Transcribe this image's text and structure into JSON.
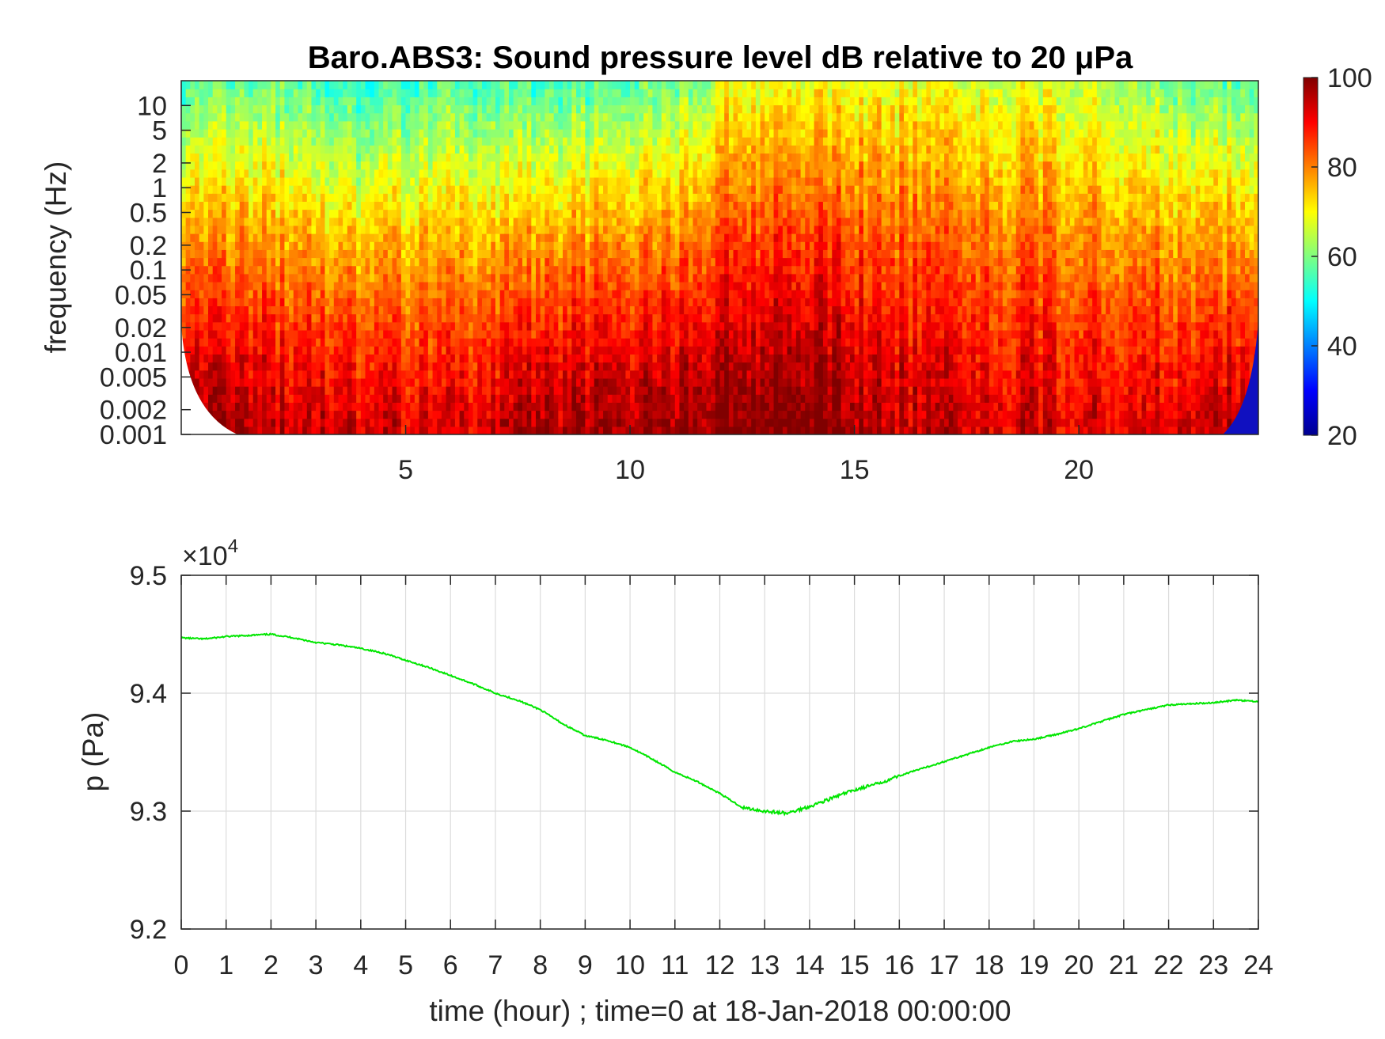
{
  "chart_data": [
    {
      "type": "heatmap",
      "title": "Baro.ABS3: Sound pressure level dB relative to 20 μPa",
      "xlabel": "",
      "ylabel": "frequency (Hz)",
      "x_ticks": [
        "5",
        "10",
        "15",
        "20"
      ],
      "x_tick_values": [
        5,
        10,
        15,
        20
      ],
      "xlim": [
        0,
        24
      ],
      "y_scale": "log",
      "y_ticks": [
        "0.001",
        "0.002",
        "0.005",
        "0.01",
        "0.02",
        "0.05",
        "0.1",
        "0.2",
        "0.5",
        "1",
        "2",
        "5",
        "10"
      ],
      "y_tick_values": [
        0.001,
        0.002,
        0.005,
        0.01,
        0.02,
        0.05,
        0.1,
        0.2,
        0.5,
        1,
        2,
        5,
        10
      ],
      "ylim": [
        0.001,
        20
      ],
      "colormap": "jet",
      "colorbar": {
        "ticks": [
          "20",
          "40",
          "60",
          "80",
          "100"
        ],
        "tick_values": [
          20,
          40,
          60,
          80,
          100
        ],
        "range": [
          20,
          100
        ]
      },
      "level_profile": {
        "hour": [
          0,
          2,
          4,
          6,
          8,
          10,
          11.5,
          12,
          14,
          16,
          18,
          20,
          22,
          24
        ],
        "top_level_db": [
          56,
          58,
          52,
          58,
          54,
          58,
          60,
          68,
          70,
          69,
          68,
          66,
          60,
          57
        ],
        "low_freq_level_db": [
          97,
          95,
          92,
          93,
          96,
          98,
          99,
          100,
          100,
          95,
          94,
          92,
          93,
          96
        ]
      }
    },
    {
      "type": "line",
      "xlabel": "time (hour) ; time=0 at 18-Jan-2018 00:00:00",
      "ylabel": "p (Pa)",
      "y_exponent_label": "×10",
      "y_exponent_power": "4",
      "x_ticks": [
        "0",
        "1",
        "2",
        "3",
        "4",
        "5",
        "6",
        "7",
        "8",
        "9",
        "10",
        "11",
        "12",
        "13",
        "14",
        "15",
        "16",
        "17",
        "18",
        "19",
        "20",
        "21",
        "22",
        "23",
        "24"
      ],
      "y_ticks": [
        "9.2",
        "9.3",
        "9.4",
        "9.5"
      ],
      "y_tick_values": [
        92000,
        93000,
        94000,
        95000
      ],
      "xlim": [
        0,
        24
      ],
      "ylim": [
        92000,
        95000
      ],
      "grid": true,
      "line_color": "#00e600",
      "series": [
        {
          "x": [
            0,
            0.5,
            1,
            1.5,
            2,
            2.5,
            3,
            3.5,
            4,
            4.5,
            5,
            5.5,
            6,
            6.5,
            7,
            7.5,
            8,
            8.5,
            9,
            9.5,
            10,
            10.5,
            11,
            11.5,
            12,
            12.5,
            13,
            13.5,
            14,
            14.5,
            15,
            15.5,
            16,
            16.5,
            17,
            17.5,
            18,
            18.5,
            19,
            19.5,
            20,
            20.5,
            21,
            21.5,
            22,
            22.5,
            23,
            23.5,
            24
          ],
          "y": [
            94470,
            94460,
            94480,
            94490,
            94500,
            94470,
            94430,
            94410,
            94380,
            94340,
            94280,
            94220,
            94150,
            94080,
            94000,
            93940,
            93860,
            93740,
            93640,
            93600,
            93540,
            93440,
            93330,
            93250,
            93150,
            93030,
            93000,
            92980,
            93040,
            93110,
            93180,
            93230,
            93300,
            93360,
            93420,
            93480,
            93540,
            93590,
            93610,
            93650,
            93700,
            93760,
            93820,
            93860,
            93900,
            93910,
            93920,
            93940,
            93930
          ]
        }
      ]
    }
  ]
}
